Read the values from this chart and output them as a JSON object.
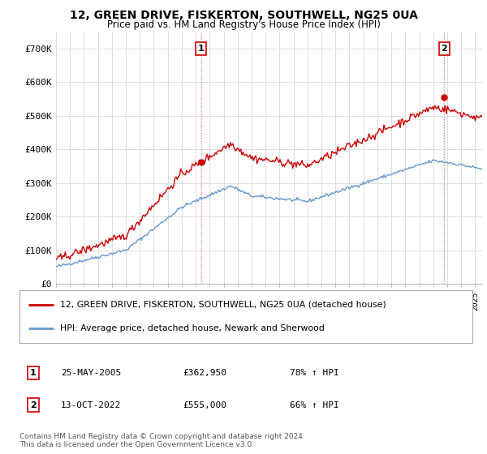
{
  "title": "12, GREEN DRIVE, FISKERTON, SOUTHWELL, NG25 0UA",
  "subtitle": "Price paid vs. HM Land Registry's House Price Index (HPI)",
  "xlim_start": 1995.0,
  "xlim_end": 2025.5,
  "ylim": [
    0,
    750000
  ],
  "yticks": [
    0,
    100000,
    200000,
    300000,
    400000,
    500000,
    600000,
    700000
  ],
  "ytick_labels": [
    "£0",
    "£100K",
    "£200K",
    "£300K",
    "£400K",
    "£500K",
    "£600K",
    "£700K"
  ],
  "red_line_color": "#cc0000",
  "blue_line_color": "#6699cc",
  "marker1_x": 2005.39,
  "marker1_y": 362950,
  "marker2_x": 2022.78,
  "marker2_y": 555000,
  "vline1_x": 2005.39,
  "vline2_x": 2022.78,
  "legend_label_red": "12, GREEN DRIVE, FISKERTON, SOUTHWELL, NG25 0UA (detached house)",
  "legend_label_blue": "HPI: Average price, detached house, Newark and Sherwood",
  "annotation1_num": "1",
  "annotation2_num": "2",
  "table_row1": [
    "1",
    "25-MAY-2005",
    "£362,950",
    "78% ↑ HPI"
  ],
  "table_row2": [
    "2",
    "13-OCT-2022",
    "£555,000",
    "66% ↑ HPI"
  ],
  "footer": "Contains HM Land Registry data © Crown copyright and database right 2024.\nThis data is licensed under the Open Government Licence v3.0.",
  "background_color": "#ffffff",
  "grid_color": "#dddddd"
}
